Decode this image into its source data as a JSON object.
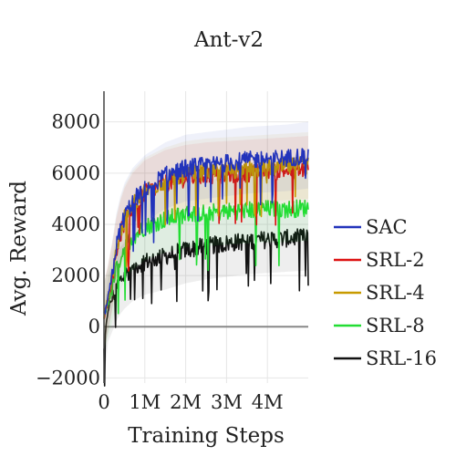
{
  "chart_data": {
    "type": "line",
    "title": "Ant-v2",
    "xlabel": "Training Steps",
    "ylabel": "Avg. Reward",
    "xlim": [
      0,
      5000000
    ],
    "ylim": [
      -2200,
      9200
    ],
    "x_ticks": [
      {
        "value": 0,
        "label": "0"
      },
      {
        "value": 1000000,
        "label": "1M"
      },
      {
        "value": 2000000,
        "label": "2M"
      },
      {
        "value": 3000000,
        "label": "3M"
      },
      {
        "value": 4000000,
        "label": "4M"
      }
    ],
    "y_ticks": [
      {
        "value": -2000,
        "label": "−2000"
      },
      {
        "value": 0,
        "label": "0"
      },
      {
        "value": 2000,
        "label": "2000"
      },
      {
        "value": 4000,
        "label": "4000"
      },
      {
        "value": 6000,
        "label": "6000"
      },
      {
        "value": 8000,
        "label": "8000"
      }
    ],
    "grid": true,
    "legend_position": "right",
    "x": [
      0,
      100000,
      200000,
      300000,
      400000,
      500000,
      700000,
      1000000,
      1500000,
      2000000,
      2500000,
      3000000,
      3500000,
      4000000,
      4500000,
      5000000
    ],
    "series": [
      {
        "name": "SAC",
        "color": "#2233bb",
        "values": [
          400,
          1100,
          2000,
          3100,
          3800,
          4300,
          4900,
          5400,
          5900,
          6200,
          6300,
          6400,
          6500,
          6550,
          6600,
          6700
        ]
      },
      {
        "name": "SRL-2",
        "color": "#dd1111",
        "values": [
          400,
          1100,
          1900,
          2900,
          3600,
          4100,
          4700,
          5200,
          5600,
          5800,
          5900,
          5950,
          6000,
          6050,
          6100,
          6150
        ]
      },
      {
        "name": "SRL-4",
        "color": "#c89a00",
        "values": [
          400,
          1150,
          2000,
          3000,
          3700,
          4200,
          4800,
          5300,
          5700,
          5950,
          6050,
          6100,
          6150,
          6200,
          6250,
          6300
        ]
      },
      {
        "name": "SRL-8",
        "color": "#22dd33",
        "values": [
          400,
          900,
          1500,
          2200,
          2700,
          3100,
          3500,
          3900,
          4200,
          4400,
          4450,
          4500,
          4550,
          4600,
          4600,
          4650
        ]
      },
      {
        "name": "SRL-16",
        "color": "#111111",
        "values": [
          -900,
          700,
          1100,
          1500,
          1800,
          2000,
          2300,
          2550,
          2750,
          3000,
          3150,
          3250,
          3350,
          3400,
          3450,
          3500
        ]
      }
    ]
  }
}
